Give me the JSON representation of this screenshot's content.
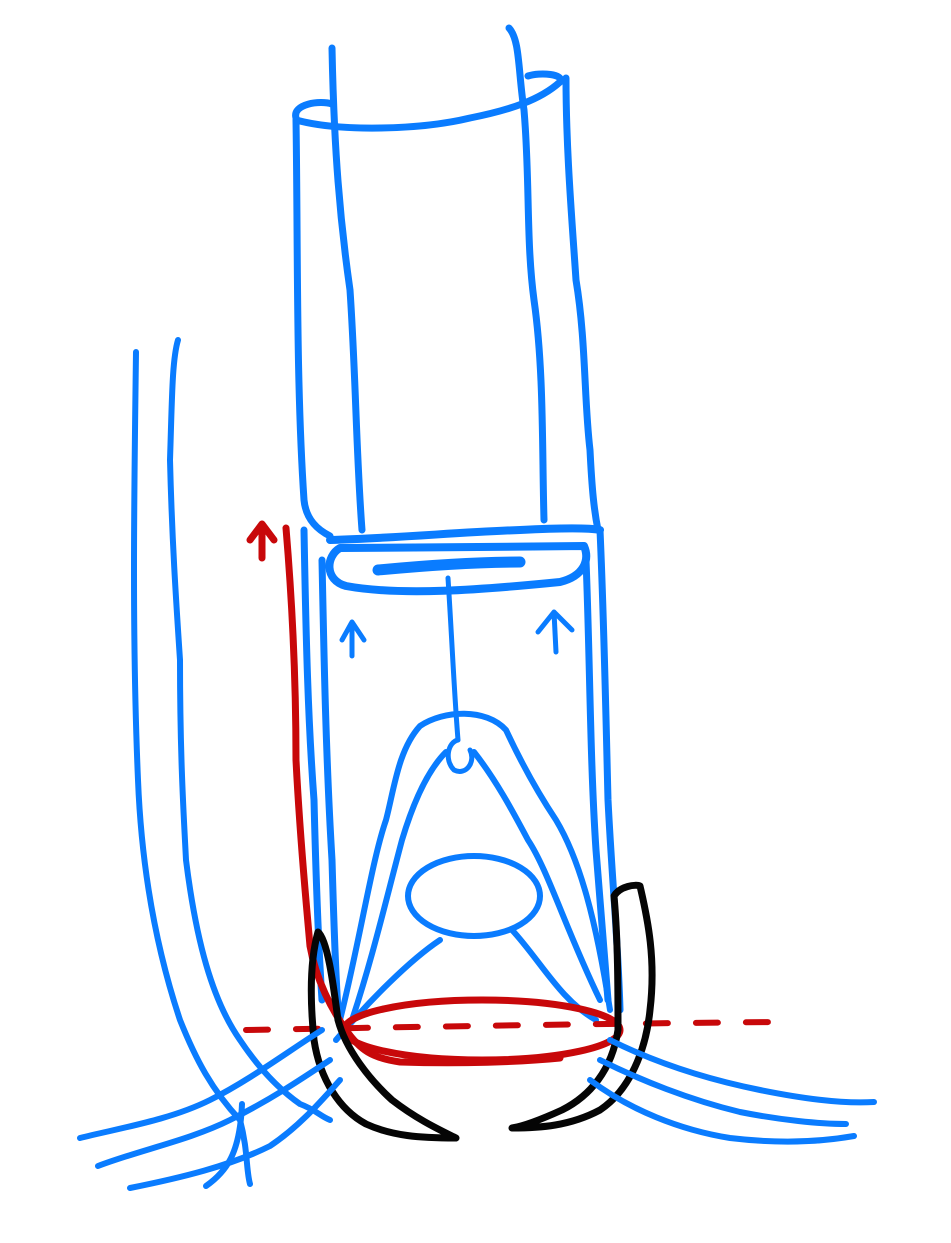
{
  "drawing": {
    "colors": {
      "background": "#ffffff",
      "blue": "#0a7cff",
      "red": "#c8080a",
      "black": "#050505"
    },
    "parts": [
      "upper-tube",
      "plunger-disc",
      "plunger-rod",
      "upward-arrows",
      "lower-tube",
      "inner-loop-structure",
      "oval-body",
      "red-line-with-arrow",
      "red-ring",
      "red-dashed-line",
      "black-clamps",
      "left-side-wires",
      "bottom-fanning-strands"
    ]
  }
}
